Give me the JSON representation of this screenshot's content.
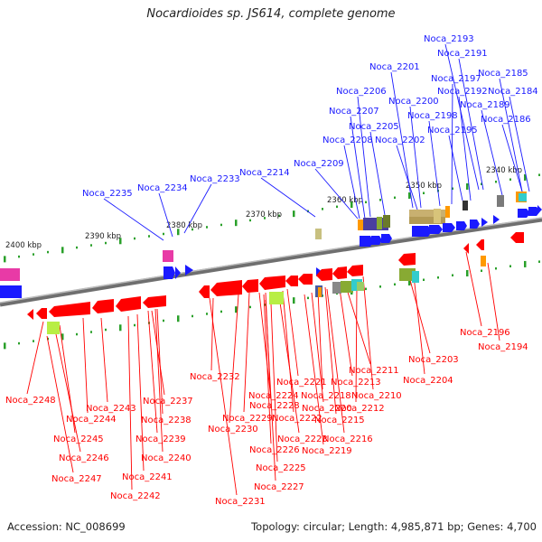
{
  "title": "Nocardioides sp. JS614, complete genome",
  "accession": "Accession: NC_008699",
  "summary": "Topology: circular; Length: 4,985,871 bp; Genes: 4,700",
  "scale_labels": [
    "2340 kbp",
    "2350 kbp",
    "2360 kbp",
    "2370 kbp",
    "2380 kbp",
    "2390 kbp",
    "2400 kbp"
  ],
  "top_genes": [
    "Noca_2193",
    "Noca_2191",
    "Noca_2201",
    "Noca_2185",
    "Noca_2197",
    "Noca_2192",
    "Noca_2184",
    "Noca_2206",
    "Noca_2200",
    "Noca_2189",
    "Noca_2207",
    "Noca_2198",
    "Noca_2186",
    "Noca_2205",
    "Noca_2195",
    "Noca_2208",
    "Noca_2202",
    "Noca_2209",
    "Noca_2214",
    "Noca_2233",
    "Noca_2234",
    "Noca_2235"
  ],
  "bottom_genes": [
    "Noca_2196",
    "Noca_2194",
    "Noca_2203",
    "Noca_2204",
    "Noca_2211",
    "Noca_2213",
    "Noca_2210",
    "Noca_2212",
    "Noca_2221",
    "Noca_2218",
    "Noca_2215",
    "Noca_2220",
    "Noca_2224",
    "Noca_2222",
    "Noca_2228",
    "Noca_2216",
    "Noca_2229",
    "Noca_2223",
    "Noca_2219",
    "Noca_2226",
    "Noca_2230",
    "Noca_2225",
    "Noca_2227",
    "Noca_2231",
    "Noca_2232",
    "Noca_2237",
    "Noca_2238",
    "Noca_2239",
    "Noca_2240",
    "Noca_2241",
    "Noca_2242",
    "Noca_2243",
    "Noca_2244",
    "Noca_2245",
    "Noca_2246",
    "Noca_2247",
    "Noca_2248"
  ],
  "colors": {
    "forward": "#1a1aff",
    "reverse": "#ff0000",
    "backbone": "#808080",
    "tick": "#2aa02a"
  }
}
